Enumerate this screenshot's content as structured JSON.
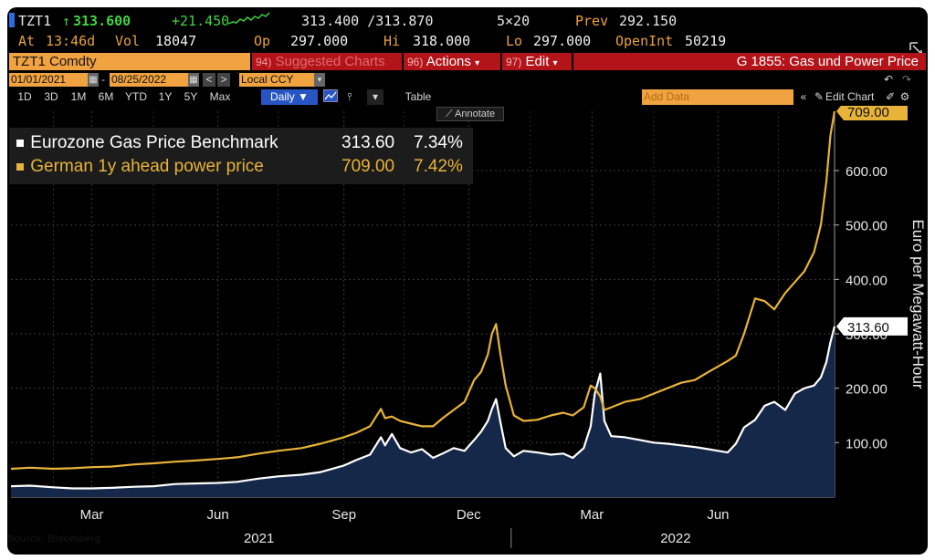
{
  "header": {
    "ticker": "TZT1",
    "last_price": "313.600",
    "change": "+21.450",
    "bid_ask": "313.400 /313.870",
    "size": "5×20",
    "prev_label": "Prev",
    "prev": "292.150",
    "at_label": "At",
    "at_time": "13:46d",
    "vol_label": "Vol",
    "vol": "18047",
    "open_label": "Op",
    "open": "297.000",
    "hi_label": "Hi",
    "hi": "318.000",
    "lo_label": "Lo",
    "lo": "297.000",
    "oi_label": "OpenInt",
    "oi": "50219"
  },
  "toolbar": {
    "security": "TZT1 Comdty",
    "suggested_num": "94)",
    "suggested_label": "Suggested Charts",
    "actions_num": "96)",
    "actions_label": "Actions",
    "edit_num": "97)",
    "edit_label": "Edit",
    "chart_name": "G 1855: Gas und Power Price"
  },
  "range": {
    "start_date": "01/01/2021",
    "dash": "-",
    "end_date": "08/25/2022",
    "currency": "Local CCY"
  },
  "periods": [
    "1D",
    "3D",
    "1M",
    "6M",
    "YTD",
    "1Y",
    "5Y",
    "Max"
  ],
  "frequency": "Daily ▼",
  "table_label": "Table",
  "add_data_placeholder": "Add Data",
  "edit_chart_label": "Edit Chart",
  "annotate_label": "Annotate",
  "legend": [
    {
      "name": "Eurozone Gas Price Benchmark",
      "value": "313.60",
      "change": "7.34%",
      "color": "#ffffff"
    },
    {
      "name": "German 1y ahead power price",
      "value": "709.00",
      "change": "7.42%",
      "color": "#e8b339"
    }
  ],
  "source": "Source: Bloomberg",
  "colors": {
    "gas": "#ffffff",
    "power": "#e8b339",
    "area": "#16284a",
    "grid": "#3c3c3c",
    "axis_text": "#e8e8e8"
  },
  "chart_data": {
    "type": "line",
    "ylabel": "Euro per Megawatt-Hour",
    "ylim": [
      0,
      709
    ],
    "yticks": [
      "100.00",
      "200.00",
      "300.00",
      "400.00",
      "500.00",
      "600.00"
    ],
    "x_month_labels": [
      "Mar",
      "Jun",
      "Sep",
      "Dec",
      "Mar",
      "Jun"
    ],
    "x_year_labels": [
      "2021",
      "2022"
    ],
    "last_value_labels": [
      "709.00",
      "313.60"
    ],
    "x_start": "2021-01-01",
    "x_end": "2022-08-25",
    "series": [
      {
        "name": "Eurozone Gas Price Benchmark",
        "area": true,
        "points": [
          [
            "2021-01-01",
            20
          ],
          [
            "2021-01-15",
            21
          ],
          [
            "2021-02-01",
            18
          ],
          [
            "2021-02-15",
            16
          ],
          [
            "2021-03-01",
            16
          ],
          [
            "2021-03-15",
            17
          ],
          [
            "2021-04-01",
            19
          ],
          [
            "2021-04-15",
            20
          ],
          [
            "2021-05-01",
            24
          ],
          [
            "2021-05-15",
            25
          ],
          [
            "2021-06-01",
            26
          ],
          [
            "2021-06-15",
            28
          ],
          [
            "2021-07-01",
            34
          ],
          [
            "2021-07-15",
            38
          ],
          [
            "2021-08-01",
            41
          ],
          [
            "2021-08-15",
            46
          ],
          [
            "2021-09-01",
            58
          ],
          [
            "2021-09-10",
            68
          ],
          [
            "2021-09-20",
            78
          ],
          [
            "2021-09-28",
            110
          ],
          [
            "2021-10-01",
            95
          ],
          [
            "2021-10-06",
            116
          ],
          [
            "2021-10-12",
            90
          ],
          [
            "2021-10-20",
            82
          ],
          [
            "2021-10-28",
            88
          ],
          [
            "2021-11-05",
            72
          ],
          [
            "2021-11-12",
            80
          ],
          [
            "2021-11-20",
            90
          ],
          [
            "2021-11-28",
            85
          ],
          [
            "2021-12-05",
            105
          ],
          [
            "2021-12-10",
            120
          ],
          [
            "2021-12-15",
            140
          ],
          [
            "2021-12-18",
            162
          ],
          [
            "2021-12-21",
            180
          ],
          [
            "2021-12-24",
            140
          ],
          [
            "2021-12-28",
            90
          ],
          [
            "2022-01-03",
            75
          ],
          [
            "2022-01-10",
            85
          ],
          [
            "2022-01-20",
            82
          ],
          [
            "2022-01-30",
            78
          ],
          [
            "2022-02-08",
            80
          ],
          [
            "2022-02-15",
            72
          ],
          [
            "2022-02-23",
            90
          ],
          [
            "2022-02-28",
            130
          ],
          [
            "2022-03-03",
            190
          ],
          [
            "2022-03-07",
            227
          ],
          [
            "2022-03-10",
            140
          ],
          [
            "2022-03-15",
            112
          ],
          [
            "2022-03-25",
            110
          ],
          [
            "2022-04-05",
            105
          ],
          [
            "2022-04-15",
            100
          ],
          [
            "2022-04-25",
            98
          ],
          [
            "2022-05-05",
            95
          ],
          [
            "2022-05-15",
            92
          ],
          [
            "2022-05-25",
            88
          ],
          [
            "2022-06-01",
            85
          ],
          [
            "2022-06-08",
            82
          ],
          [
            "2022-06-14",
            98
          ],
          [
            "2022-06-20",
            128
          ],
          [
            "2022-06-28",
            142
          ],
          [
            "2022-07-05",
            168
          ],
          [
            "2022-07-12",
            175
          ],
          [
            "2022-07-20",
            160
          ],
          [
            "2022-07-27",
            190
          ],
          [
            "2022-08-03",
            200
          ],
          [
            "2022-08-10",
            205
          ],
          [
            "2022-08-15",
            220
          ],
          [
            "2022-08-19",
            248
          ],
          [
            "2022-08-22",
            285
          ],
          [
            "2022-08-25",
            313.6
          ]
        ]
      },
      {
        "name": "German 1y ahead power price",
        "area": false,
        "points": [
          [
            "2021-01-01",
            52
          ],
          [
            "2021-01-15",
            54
          ],
          [
            "2021-02-01",
            52
          ],
          [
            "2021-02-15",
            53
          ],
          [
            "2021-03-01",
            55
          ],
          [
            "2021-03-15",
            56
          ],
          [
            "2021-04-01",
            60
          ],
          [
            "2021-04-15",
            62
          ],
          [
            "2021-05-01",
            65
          ],
          [
            "2021-05-15",
            67
          ],
          [
            "2021-06-01",
            70
          ],
          [
            "2021-06-15",
            73
          ],
          [
            "2021-07-01",
            80
          ],
          [
            "2021-07-15",
            85
          ],
          [
            "2021-08-01",
            90
          ],
          [
            "2021-08-15",
            98
          ],
          [
            "2021-09-01",
            110
          ],
          [
            "2021-09-10",
            118
          ],
          [
            "2021-09-20",
            130
          ],
          [
            "2021-09-28",
            162
          ],
          [
            "2021-10-01",
            145
          ],
          [
            "2021-10-06",
            148
          ],
          [
            "2021-10-12",
            140
          ],
          [
            "2021-10-20",
            135
          ],
          [
            "2021-10-28",
            130
          ],
          [
            "2021-11-05",
            130
          ],
          [
            "2021-11-12",
            145
          ],
          [
            "2021-11-20",
            160
          ],
          [
            "2021-11-28",
            175
          ],
          [
            "2021-12-05",
            215
          ],
          [
            "2021-12-10",
            230
          ],
          [
            "2021-12-15",
            262
          ],
          [
            "2021-12-18",
            300
          ],
          [
            "2021-12-21",
            318
          ],
          [
            "2021-12-24",
            265
          ],
          [
            "2021-12-28",
            205
          ],
          [
            "2022-01-03",
            150
          ],
          [
            "2022-01-10",
            140
          ],
          [
            "2022-01-20",
            142
          ],
          [
            "2022-01-30",
            150
          ],
          [
            "2022-02-08",
            155
          ],
          [
            "2022-02-15",
            150
          ],
          [
            "2022-02-23",
            165
          ],
          [
            "2022-02-28",
            205
          ],
          [
            "2022-03-03",
            200
          ],
          [
            "2022-03-07",
            185
          ],
          [
            "2022-03-10",
            160
          ],
          [
            "2022-03-15",
            165
          ],
          [
            "2022-03-25",
            175
          ],
          [
            "2022-04-05",
            180
          ],
          [
            "2022-04-15",
            190
          ],
          [
            "2022-04-25",
            200
          ],
          [
            "2022-05-05",
            210
          ],
          [
            "2022-05-15",
            215
          ],
          [
            "2022-05-25",
            230
          ],
          [
            "2022-06-01",
            240
          ],
          [
            "2022-06-08",
            250
          ],
          [
            "2022-06-14",
            260
          ],
          [
            "2022-06-20",
            300
          ],
          [
            "2022-06-28",
            365
          ],
          [
            "2022-07-05",
            360
          ],
          [
            "2022-07-12",
            345
          ],
          [
            "2022-07-20",
            375
          ],
          [
            "2022-07-27",
            395
          ],
          [
            "2022-08-03",
            415
          ],
          [
            "2022-08-10",
            450
          ],
          [
            "2022-08-15",
            500
          ],
          [
            "2022-08-19",
            580
          ],
          [
            "2022-08-22",
            665
          ],
          [
            "2022-08-25",
            709
          ]
        ]
      }
    ]
  }
}
